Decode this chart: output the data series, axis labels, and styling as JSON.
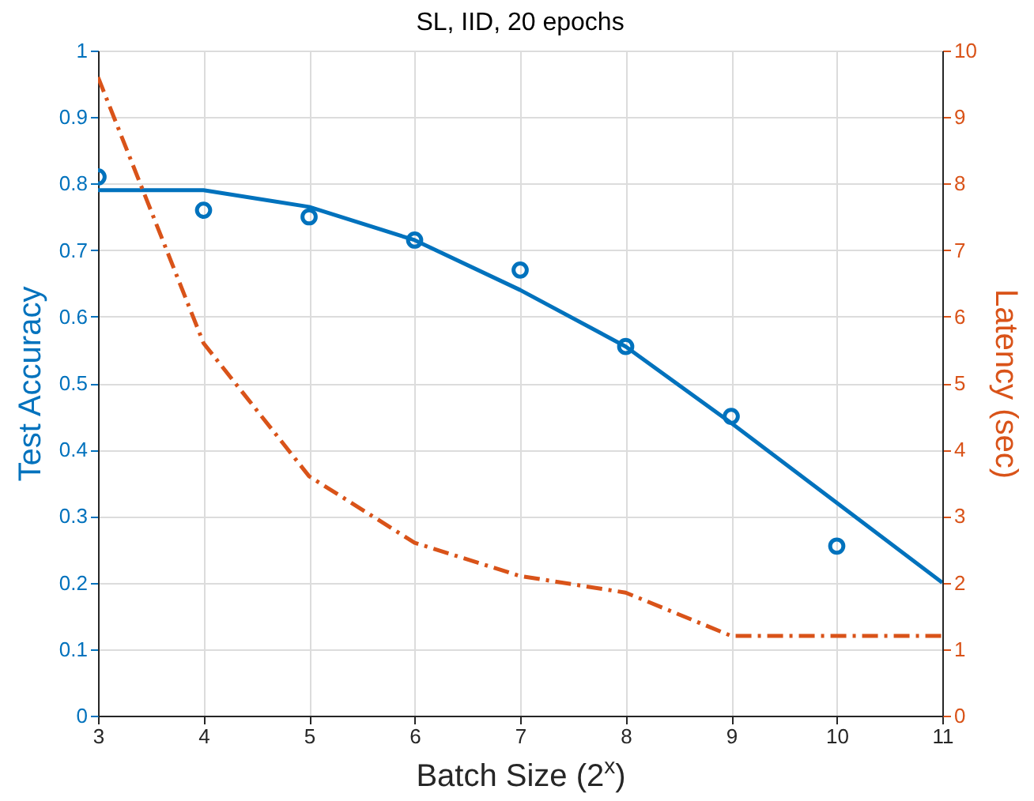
{
  "chart_data": {
    "type": "line",
    "title": "SL, IID, 20 epochs",
    "xlabel": "Batch Size (2$^{x}$)",
    "ylabel": "Test Accuracy",
    "y2label": "Latency (sec)",
    "x": [
      3,
      4,
      5,
      6,
      7,
      8,
      9,
      10,
      11
    ],
    "series": [
      {
        "type": "scatter",
        "marker": "circle",
        "color": "#0072bd",
        "x": [
          3,
          4,
          5,
          6,
          7,
          8,
          9,
          10
        ],
        "values": [
          0.81,
          0.76,
          0.75,
          0.715,
          0.67,
          0.555,
          0.45,
          0.255
        ]
      },
      {
        "type": "line",
        "line_style": "solid",
        "color": "#0072bd",
        "values": [
          0.79,
          0.79,
          0.765,
          0.715,
          0.64,
          0.555,
          0.44,
          0.32,
          0.2
        ]
      },
      {
        "type": "line",
        "line_style": "dashed",
        "axis": "y2",
        "color": "#d95319",
        "values": [
          9.6,
          5.6,
          3.6,
          2.6,
          2.1,
          1.85,
          1.2,
          1.2,
          1.2
        ]
      }
    ],
    "xlim": [
      3,
      11
    ],
    "xticks": [
      3,
      4,
      5,
      6,
      7,
      8,
      9,
      10,
      11
    ],
    "ylim": [
      0,
      1
    ],
    "yticks": [
      0,
      0.1,
      0.2,
      0.3,
      0.4,
      0.5,
      0.6,
      0.7,
      0.8,
      0.9,
      1
    ],
    "y2lim": [
      0,
      10
    ],
    "y2ticks": [
      0,
      1,
      2,
      3,
      4,
      5,
      6,
      7,
      8,
      9,
      10
    ],
    "grid": true
  }
}
